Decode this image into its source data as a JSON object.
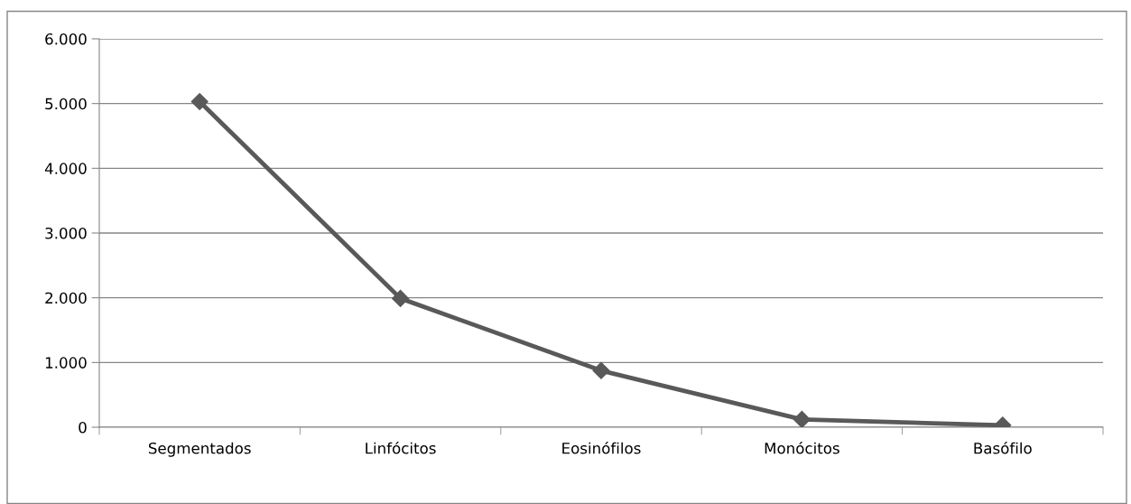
{
  "chart_data": {
    "type": "line",
    "categories": [
      "Segmentados",
      "Linfócitos",
      "Eosinófilos",
      "Monócitos",
      "Basófilo"
    ],
    "series": [
      {
        "color": "#595959",
        "values": [
          5030,
          1990,
          875,
          120,
          30
        ]
      }
    ],
    "ylim": [
      0,
      6000
    ],
    "yticks": [
      {
        "value": 0,
        "label": "0"
      },
      {
        "value": 1000,
        "label": "1.000"
      },
      {
        "value": 2000,
        "label": "2.000"
      },
      {
        "value": 3000,
        "label": "3.000"
      },
      {
        "value": 4000,
        "label": "4.000"
      },
      {
        "value": 5000,
        "label": "5.000"
      },
      {
        "value": 6000,
        "label": "6.000"
      }
    ],
    "grid": "y",
    "marker": "diamond",
    "line_style": "solid"
  }
}
